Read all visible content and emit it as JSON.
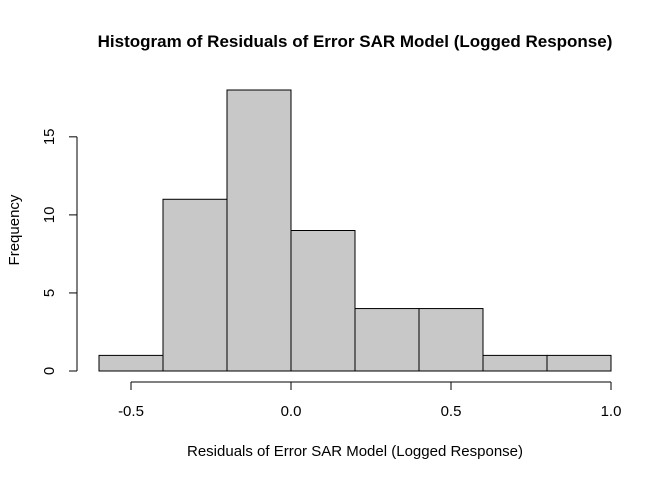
{
  "chart_data": {
    "type": "bar",
    "title": "Histogram of Residuals of Error SAR Model (Logged Response)",
    "xlabel": "Residuals of Error SAR Model (Logged Response)",
    "ylabel": "Frequency",
    "bins": [
      {
        "start": -0.6,
        "end": -0.4,
        "count": 1
      },
      {
        "start": -0.4,
        "end": -0.2,
        "count": 11
      },
      {
        "start": -0.2,
        "end": 0.0,
        "count": 18
      },
      {
        "start": 0.0,
        "end": 0.2,
        "count": 9
      },
      {
        "start": 0.2,
        "end": 0.4,
        "count": 4
      },
      {
        "start": 0.4,
        "end": 0.6,
        "count": 4
      },
      {
        "start": 0.6,
        "end": 0.8,
        "count": 1
      },
      {
        "start": 0.8,
        "end": 1.0,
        "count": 1
      }
    ],
    "xlim": [
      -0.6,
      1.0
    ],
    "ylim": [
      0,
      18
    ],
    "x_ticks": [
      {
        "value": -0.5,
        "label": "-0.5"
      },
      {
        "value": 0.0,
        "label": "0.0"
      },
      {
        "value": 0.5,
        "label": "0.5"
      },
      {
        "value": 1.0,
        "label": "1.0"
      }
    ],
    "y_ticks": [
      {
        "value": 0,
        "label": "0"
      },
      {
        "value": 5,
        "label": "5"
      },
      {
        "value": 10,
        "label": "10"
      },
      {
        "value": 15,
        "label": "15"
      }
    ],
    "bar_color": "#c8c8c8",
    "grid": false
  }
}
